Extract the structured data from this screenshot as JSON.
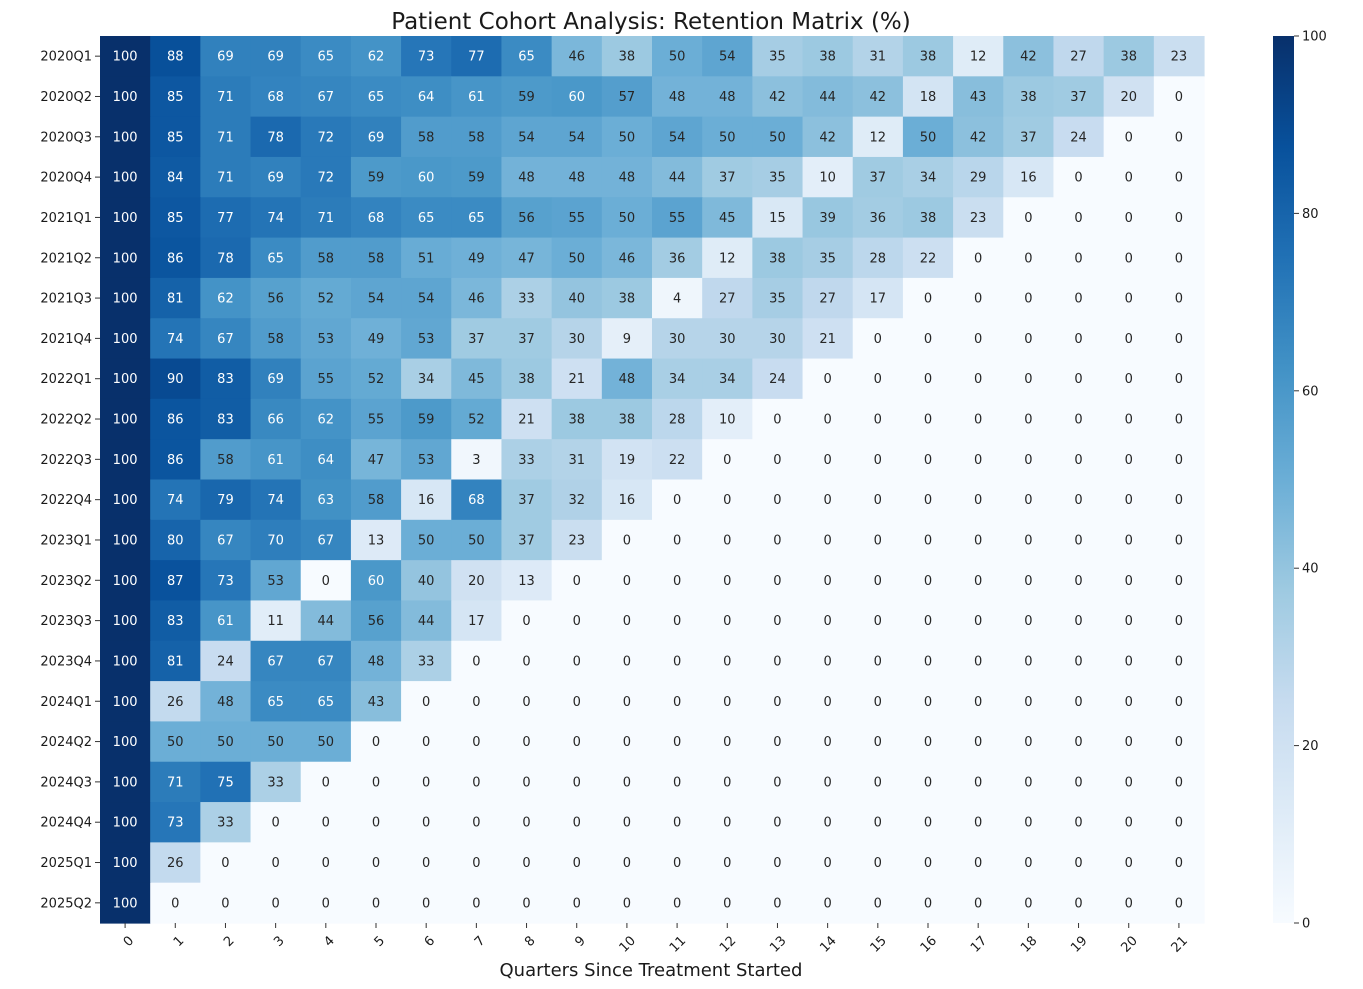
{
  "chart_data": {
    "type": "heatmap",
    "title": "Patient Cohort Analysis: Retention Matrix (%)",
    "xlabel": "Quarters Since Treatment Started",
    "ylabel": "",
    "colormap": "Blues",
    "colorbar": {
      "min": 0,
      "max": 100,
      "ticks": [
        "0",
        "20",
        "40",
        "60",
        "80",
        "100"
      ]
    },
    "x_categories": [
      "0",
      "1",
      "2",
      "3",
      "4",
      "5",
      "6",
      "7",
      "8",
      "9",
      "10",
      "11",
      "12",
      "13",
      "14",
      "15",
      "16",
      "17",
      "18",
      "19",
      "20",
      "21"
    ],
    "y_categories": [
      "2020Q1",
      "2020Q2",
      "2020Q3",
      "2020Q4",
      "2021Q1",
      "2021Q2",
      "2021Q3",
      "2021Q4",
      "2022Q1",
      "2022Q2",
      "2022Q3",
      "2022Q4",
      "2023Q1",
      "2023Q2",
      "2023Q3",
      "2023Q4",
      "2024Q1",
      "2024Q2",
      "2024Q3",
      "2024Q4",
      "2025Q1",
      "2025Q2"
    ],
    "values": [
      [
        100,
        88,
        69,
        69,
        65,
        62,
        73,
        77,
        65,
        46,
        38,
        50,
        54,
        35,
        38,
        31,
        38,
        12,
        42,
        27,
        38,
        23
      ],
      [
        100,
        85,
        71,
        68,
        67,
        65,
        64,
        61,
        59,
        60,
        57,
        48,
        48,
        42,
        44,
        42,
        18,
        43,
        38,
        37,
        20,
        0
      ],
      [
        100,
        85,
        71,
        78,
        72,
        69,
        58,
        58,
        54,
        54,
        50,
        54,
        50,
        50,
        42,
        12,
        50,
        42,
        37,
        24,
        0,
        0
      ],
      [
        100,
        84,
        71,
        69,
        72,
        59,
        60,
        59,
        48,
        48,
        48,
        44,
        37,
        35,
        10,
        37,
        34,
        29,
        16,
        0,
        0,
        0
      ],
      [
        100,
        85,
        77,
        74,
        71,
        68,
        65,
        65,
        56,
        55,
        50,
        55,
        45,
        15,
        39,
        36,
        38,
        23,
        0,
        0,
        0,
        0
      ],
      [
        100,
        86,
        78,
        65,
        58,
        58,
        51,
        49,
        47,
        50,
        46,
        36,
        12,
        38,
        35,
        28,
        22,
        0,
        0,
        0,
        0,
        0
      ],
      [
        100,
        81,
        62,
        56,
        52,
        54,
        54,
        46,
        33,
        40,
        38,
        4,
        27,
        35,
        27,
        17,
        0,
        0,
        0,
        0,
        0,
        0
      ],
      [
        100,
        74,
        67,
        58,
        53,
        49,
        53,
        37,
        37,
        30,
        9,
        30,
        30,
        30,
        21,
        0,
        0,
        0,
        0,
        0,
        0,
        0
      ],
      [
        100,
        90,
        83,
        69,
        55,
        52,
        34,
        45,
        38,
        21,
        48,
        34,
        34,
        24,
        0,
        0,
        0,
        0,
        0,
        0,
        0,
        0
      ],
      [
        100,
        86,
        83,
        66,
        62,
        55,
        59,
        52,
        21,
        38,
        38,
        28,
        10,
        0,
        0,
        0,
        0,
        0,
        0,
        0,
        0,
        0
      ],
      [
        100,
        86,
        58,
        61,
        64,
        47,
        53,
        3,
        33,
        31,
        19,
        22,
        0,
        0,
        0,
        0,
        0,
        0,
        0,
        0,
        0,
        0
      ],
      [
        100,
        74,
        79,
        74,
        63,
        58,
        16,
        68,
        37,
        32,
        16,
        0,
        0,
        0,
        0,
        0,
        0,
        0,
        0,
        0,
        0,
        0
      ],
      [
        100,
        80,
        67,
        70,
        67,
        13,
        50,
        50,
        37,
        23,
        0,
        0,
        0,
        0,
        0,
        0,
        0,
        0,
        0,
        0,
        0,
        0
      ],
      [
        100,
        87,
        73,
        53,
        0,
        60,
        40,
        20,
        13,
        0,
        0,
        0,
        0,
        0,
        0,
        0,
        0,
        0,
        0,
        0,
        0,
        0
      ],
      [
        100,
        83,
        61,
        11,
        44,
        56,
        44,
        17,
        0,
        0,
        0,
        0,
        0,
        0,
        0,
        0,
        0,
        0,
        0,
        0,
        0,
        0
      ],
      [
        100,
        81,
        24,
        67,
        67,
        48,
        33,
        0,
        0,
        0,
        0,
        0,
        0,
        0,
        0,
        0,
        0,
        0,
        0,
        0,
        0,
        0
      ],
      [
        100,
        26,
        48,
        65,
        65,
        43,
        0,
        0,
        0,
        0,
        0,
        0,
        0,
        0,
        0,
        0,
        0,
        0,
        0,
        0,
        0,
        0
      ],
      [
        100,
        50,
        50,
        50,
        50,
        0,
        0,
        0,
        0,
        0,
        0,
        0,
        0,
        0,
        0,
        0,
        0,
        0,
        0,
        0,
        0,
        0
      ],
      [
        100,
        71,
        75,
        33,
        0,
        0,
        0,
        0,
        0,
        0,
        0,
        0,
        0,
        0,
        0,
        0,
        0,
        0,
        0,
        0,
        0,
        0
      ],
      [
        100,
        73,
        33,
        0,
        0,
        0,
        0,
        0,
        0,
        0,
        0,
        0,
        0,
        0,
        0,
        0,
        0,
        0,
        0,
        0,
        0,
        0
      ],
      [
        100,
        26,
        0,
        0,
        0,
        0,
        0,
        0,
        0,
        0,
        0,
        0,
        0,
        0,
        0,
        0,
        0,
        0,
        0,
        0,
        0,
        0
      ],
      [
        100,
        0,
        0,
        0,
        0,
        0,
        0,
        0,
        0,
        0,
        0,
        0,
        0,
        0,
        0,
        0,
        0,
        0,
        0,
        0,
        0,
        0
      ]
    ]
  }
}
